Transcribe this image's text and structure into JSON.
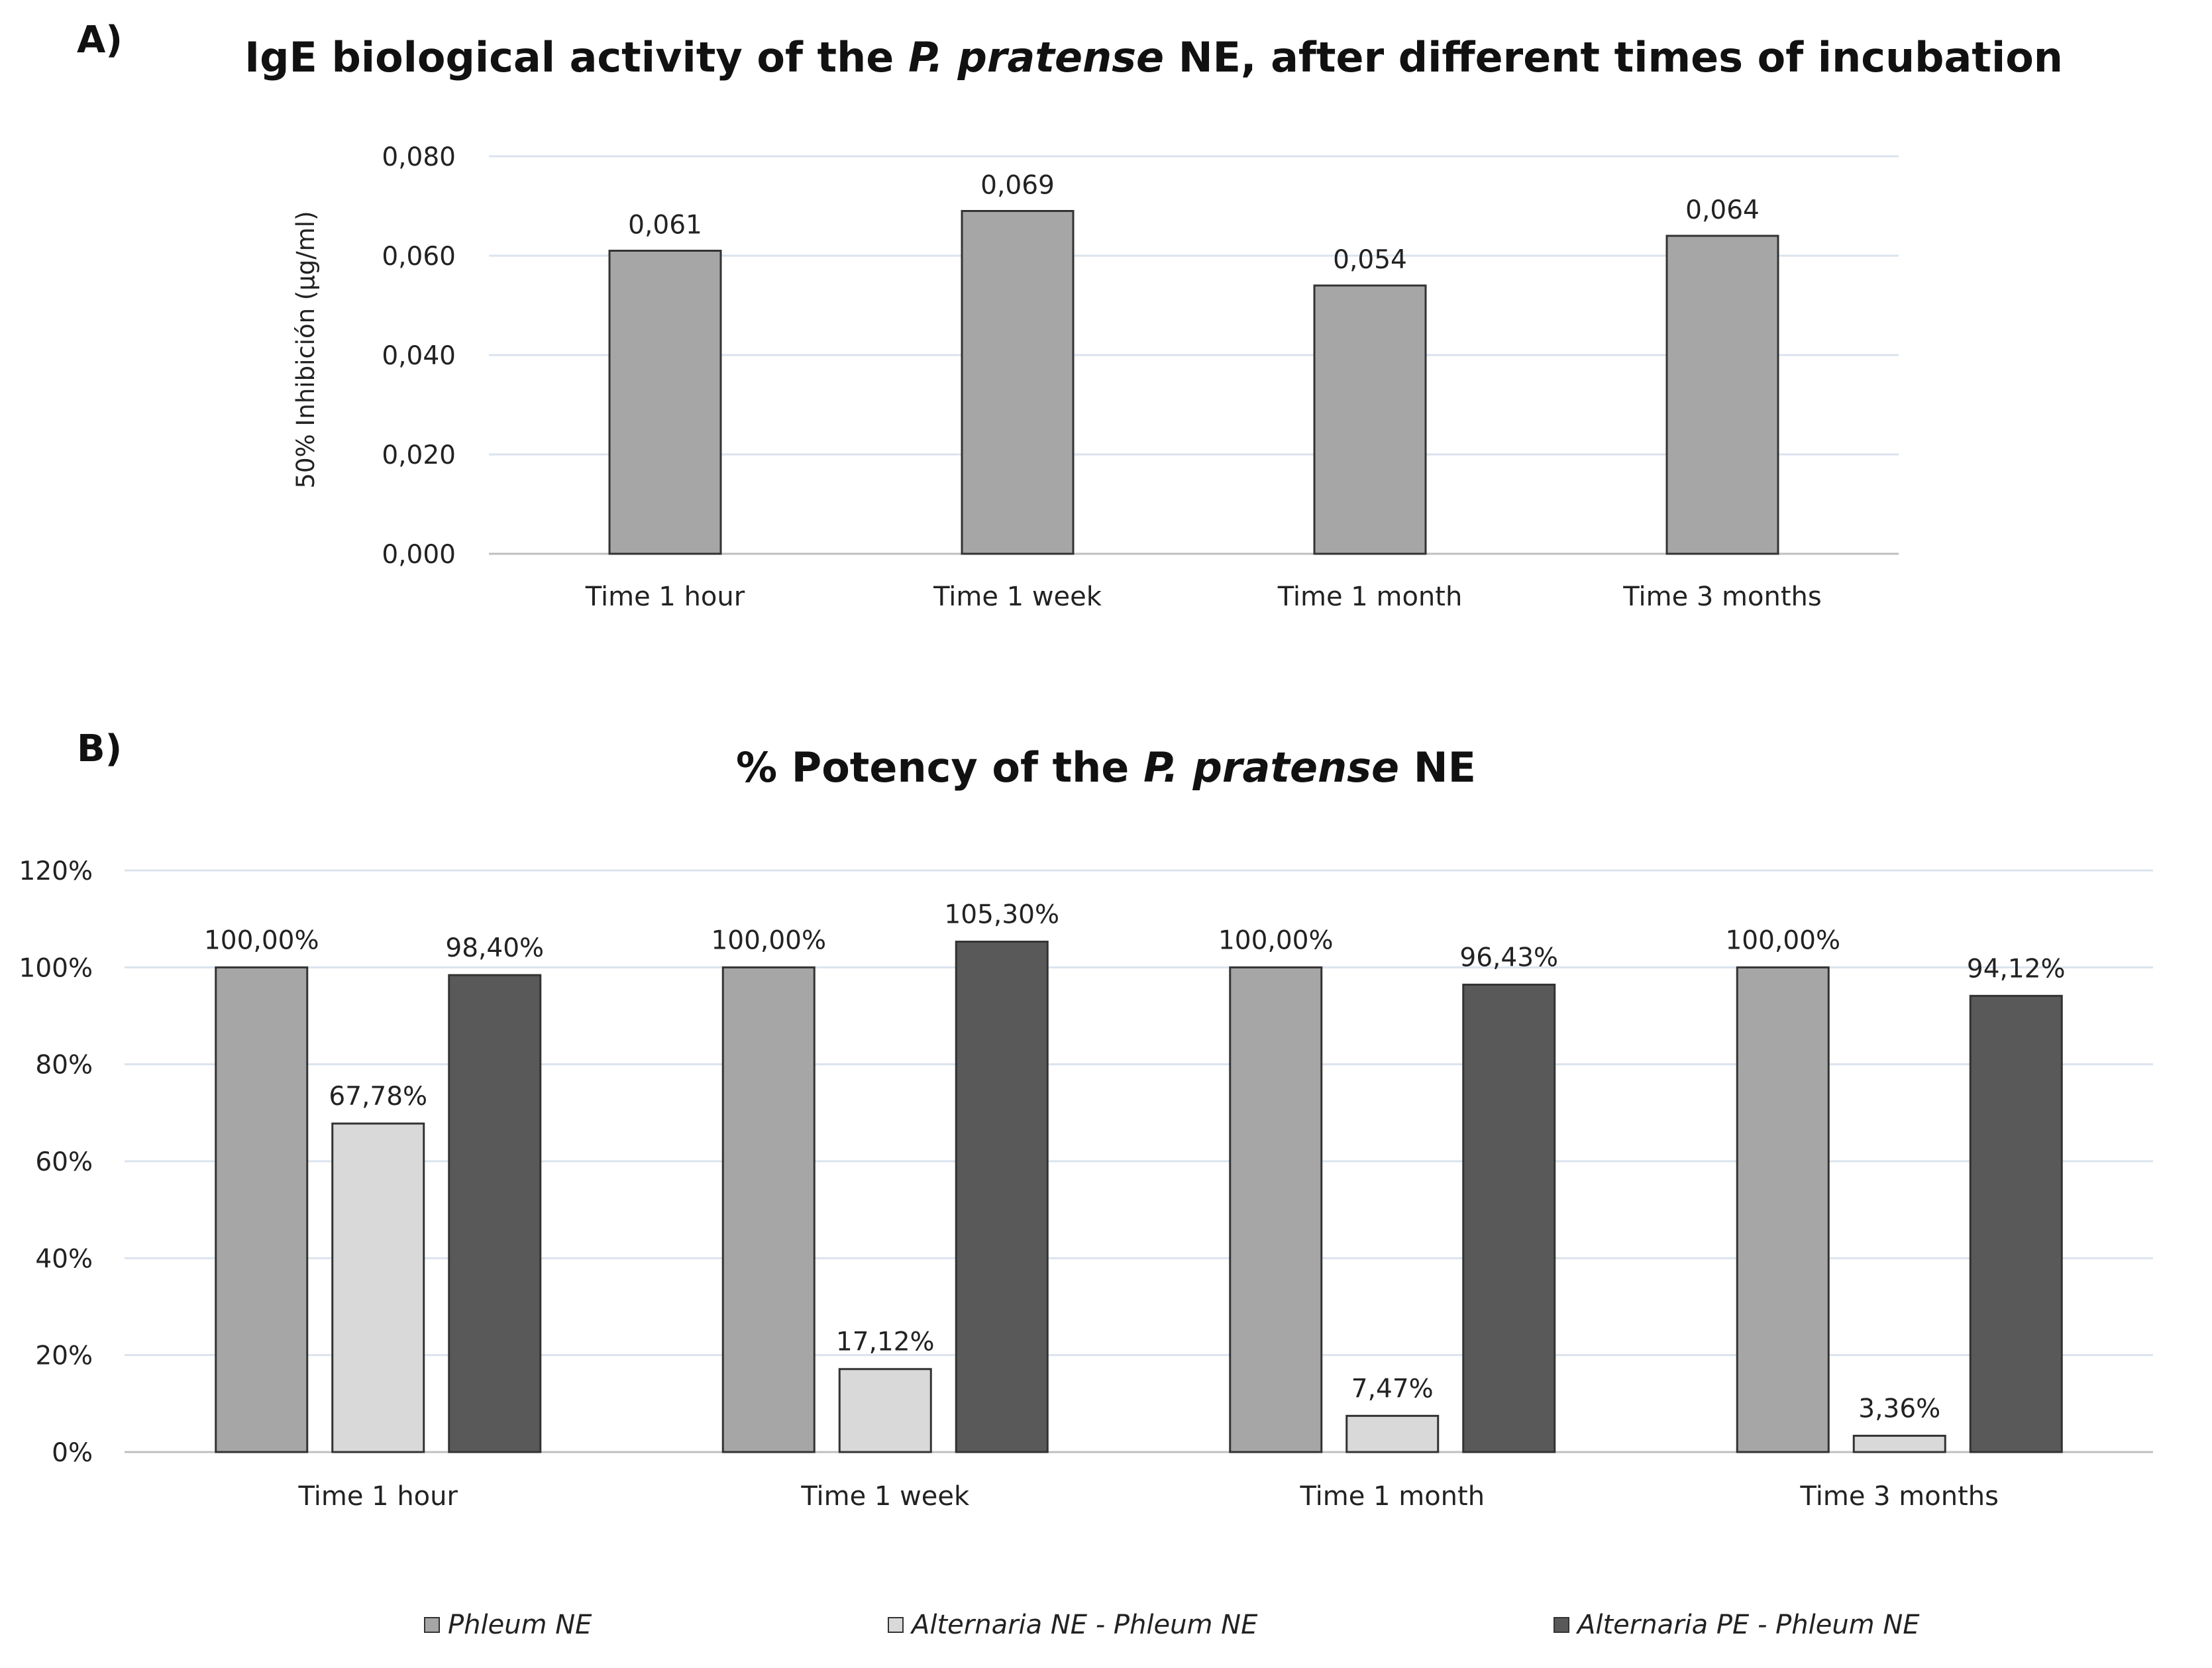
{
  "panel_a": {
    "label": "A)",
    "title_prefix": "IgE biological activity of the ",
    "title_species": "P. pratense",
    "title_suffix": " NE, after different times of incubation"
  },
  "panel_b": {
    "label": "B)",
    "title_prefix": "% Potency of the ",
    "title_species": "P. pratense",
    "title_suffix": " NE"
  },
  "colors": {
    "phleum_ne": "#a6a6a6",
    "alternaria_ne": "#d9d9d9",
    "alternaria_pe": "#595959",
    "bar_stroke": "#333333",
    "grid": "#dbe3ee",
    "axis": "#bfbfbf"
  },
  "legend": [
    {
      "label": "Phleum NE",
      "color": "#a6a6a6"
    },
    {
      "label": "Alternaria NE - Phleum NE",
      "color": "#d9d9d9"
    },
    {
      "label": "Alternaria PE - Phleum NE",
      "color": "#595959"
    }
  ],
  "chart_data": [
    {
      "type": "bar",
      "title": "IgE biological activity of the P. pratense NE, after different times of incubation",
      "xlabel": "",
      "ylabel": "50% Inhibición (µg/ml)",
      "categories": [
        "Time 1 hour",
        "Time 1 week",
        "Time 1 month",
        "Time 3 months"
      ],
      "values": [
        0.061,
        0.069,
        0.054,
        0.064
      ],
      "data_labels": [
        "0,061",
        "0,069",
        "0,054",
        "0,064"
      ],
      "ylim": [
        0,
        0.08
      ],
      "yticks": [
        0,
        0.02,
        0.04,
        0.06,
        0.08
      ],
      "ytick_labels": [
        "0,000",
        "0,020",
        "0,040",
        "0,060",
        "0,080"
      ],
      "grid": true,
      "legend": "none"
    },
    {
      "type": "bar",
      "title": "% Potency of the P. pratense NE",
      "xlabel": "",
      "ylabel": "",
      "categories": [
        "Time 1 hour",
        "Time 1 week",
        "Time 1 month",
        "Time 3 months"
      ],
      "series": [
        {
          "name": "Phleum NE",
          "values": [
            100.0,
            100.0,
            100.0,
            100.0
          ],
          "data_labels": [
            "100,00%",
            "100,00%",
            "100,00%",
            "100,00%"
          ]
        },
        {
          "name": "Alternaria NE - Phleum NE",
          "values": [
            67.78,
            17.12,
            7.47,
            3.36
          ],
          "data_labels": [
            "67,78%",
            "17,12%",
            "7,47%",
            "3,36%"
          ]
        },
        {
          "name": "Alternaria PE - Phleum NE",
          "values": [
            98.4,
            105.3,
            96.43,
            94.12
          ],
          "data_labels": [
            "98,40%",
            "105,30%",
            "96,43%",
            "94,12%"
          ]
        }
      ],
      "ylim": [
        0,
        120
      ],
      "yticks": [
        0,
        20,
        40,
        60,
        80,
        100,
        120
      ],
      "ytick_labels": [
        "0%",
        "20%",
        "40%",
        "60%",
        "80%",
        "100%",
        "120%"
      ],
      "grid": true,
      "legend": "bottom"
    }
  ]
}
